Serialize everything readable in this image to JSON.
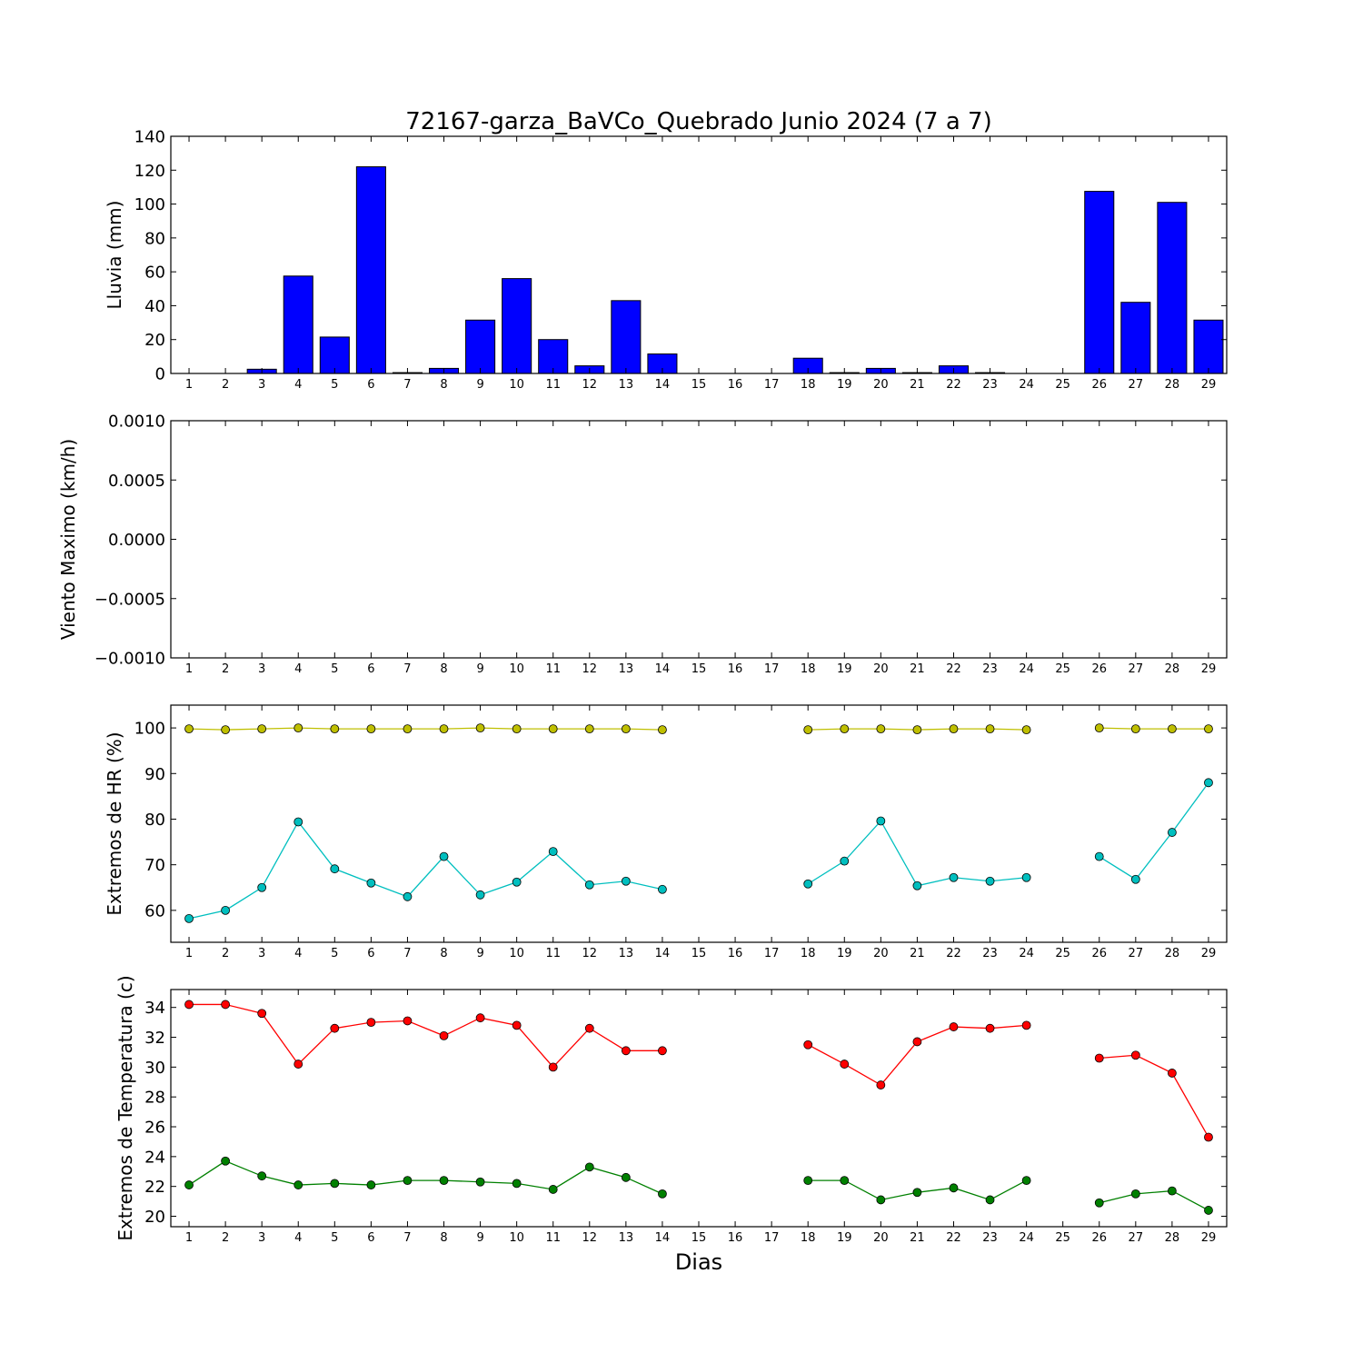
{
  "figure": {
    "title": "72167-garza_BaVCo_Quebrado Junio 2024  (7 a 7)",
    "xlabel": "Dias"
  },
  "chart_data": [
    {
      "type": "bar",
      "ylabel": "Lluvia (mm)",
      "ylim": [
        0,
        140
      ],
      "yticks": [
        0,
        20,
        40,
        60,
        80,
        100,
        120,
        140
      ],
      "ytick_labels": [
        "0",
        "20",
        "40",
        "60",
        "80",
        "100",
        "120",
        "140"
      ],
      "categories": [
        "1",
        "2",
        "3",
        "4",
        "5",
        "6",
        "7",
        "8",
        "9",
        "10",
        "11",
        "12",
        "13",
        "14",
        "15",
        "16",
        "17",
        "18",
        "19",
        "20",
        "21",
        "22",
        "23",
        "24",
        "25",
        "26",
        "27",
        "28",
        "29"
      ],
      "series": [
        {
          "color": "#0000ff",
          "values": [
            0,
            0,
            2.5,
            57.5,
            21.5,
            122,
            0.5,
            3,
            31.5,
            56,
            20,
            4.5,
            43,
            11.5,
            0,
            0,
            0,
            9,
            0.5,
            3,
            0.5,
            4.5,
            0.5,
            0,
            0,
            107.5,
            42,
            101,
            31.5
          ]
        }
      ],
      "grid": false
    },
    {
      "type": "line",
      "ylabel": "Viento Maximo (km/h)",
      "ylim": [
        -0.001,
        0.001
      ],
      "yticks": [
        -0.001,
        -0.0005,
        0,
        0.0005,
        0.001
      ],
      "ytick_labels": [
        "−0.0010",
        "−0.0005",
        "0.0000",
        "0.0005",
        "0.0010"
      ],
      "categories": [
        "1",
        "2",
        "3",
        "4",
        "5",
        "6",
        "7",
        "8",
        "9",
        "10",
        "11",
        "12",
        "13",
        "14",
        "15",
        "16",
        "17",
        "18",
        "19",
        "20",
        "21",
        "22",
        "23",
        "24",
        "25",
        "26",
        "27",
        "28",
        "29"
      ],
      "series": [],
      "grid": false
    },
    {
      "type": "line",
      "ylabel": "Extremos de HR (%)",
      "ylim": [
        53,
        105
      ],
      "yticks": [
        60,
        70,
        80,
        90,
        100
      ],
      "ytick_labels": [
        "60",
        "70",
        "80",
        "90",
        "100"
      ],
      "categories": [
        "1",
        "2",
        "3",
        "4",
        "5",
        "6",
        "7",
        "8",
        "9",
        "10",
        "11",
        "12",
        "13",
        "14",
        "15",
        "16",
        "17",
        "18",
        "19",
        "20",
        "21",
        "22",
        "23",
        "24",
        "25",
        "26",
        "27",
        "28",
        "29"
      ],
      "series": [
        {
          "color": "#bfbf00",
          "values": [
            99.8,
            99.6,
            99.8,
            100,
            99.8,
            99.8,
            99.8,
            99.8,
            100,
            99.8,
            99.8,
            99.8,
            99.8,
            99.6,
            null,
            null,
            null,
            99.6,
            99.8,
            99.8,
            99.6,
            99.8,
            99.8,
            99.6,
            null,
            100,
            99.8,
            99.8,
            99.8
          ]
        },
        {
          "color": "#00bfbf",
          "values": [
            58.2,
            60,
            65,
            79.4,
            69.1,
            66,
            63,
            71.8,
            63.4,
            66.2,
            72.9,
            65.6,
            66.4,
            64.6,
            null,
            null,
            null,
            65.8,
            70.8,
            79.6,
            65.4,
            67.2,
            66.4,
            67.2,
            null,
            71.8,
            66.8,
            77.1,
            88
          ]
        }
      ],
      "grid": false
    },
    {
      "type": "line",
      "ylabel": "Extremos de Temperatura (c)",
      "ylim": [
        19.3,
        35.2
      ],
      "yticks": [
        20,
        22,
        24,
        26,
        28,
        30,
        32,
        34
      ],
      "ytick_labels": [
        "20",
        "22",
        "24",
        "26",
        "28",
        "30",
        "32",
        "34"
      ],
      "categories": [
        "1",
        "2",
        "3",
        "4",
        "5",
        "6",
        "7",
        "8",
        "9",
        "10",
        "11",
        "12",
        "13",
        "14",
        "15",
        "16",
        "17",
        "18",
        "19",
        "20",
        "21",
        "22",
        "23",
        "24",
        "25",
        "26",
        "27",
        "28",
        "29"
      ],
      "series": [
        {
          "color": "#ff0000",
          "values": [
            34.2,
            34.2,
            33.6,
            30.2,
            32.6,
            33,
            33.1,
            32.1,
            33.3,
            32.8,
            30,
            32.6,
            31.1,
            31.1,
            null,
            null,
            null,
            31.5,
            30.2,
            28.8,
            31.7,
            32.7,
            32.6,
            32.8,
            null,
            30.6,
            30.8,
            29.6,
            25.3
          ]
        },
        {
          "color": "#008000",
          "values": [
            22.1,
            23.7,
            22.7,
            22.1,
            22.2,
            22.1,
            22.4,
            22.4,
            22.3,
            22.2,
            21.8,
            23.3,
            22.6,
            21.5,
            null,
            null,
            null,
            22.4,
            22.4,
            21.1,
            21.6,
            21.9,
            21.1,
            22.4,
            null,
            20.9,
            21.5,
            21.7,
            20.4
          ]
        }
      ],
      "grid": false
    }
  ]
}
